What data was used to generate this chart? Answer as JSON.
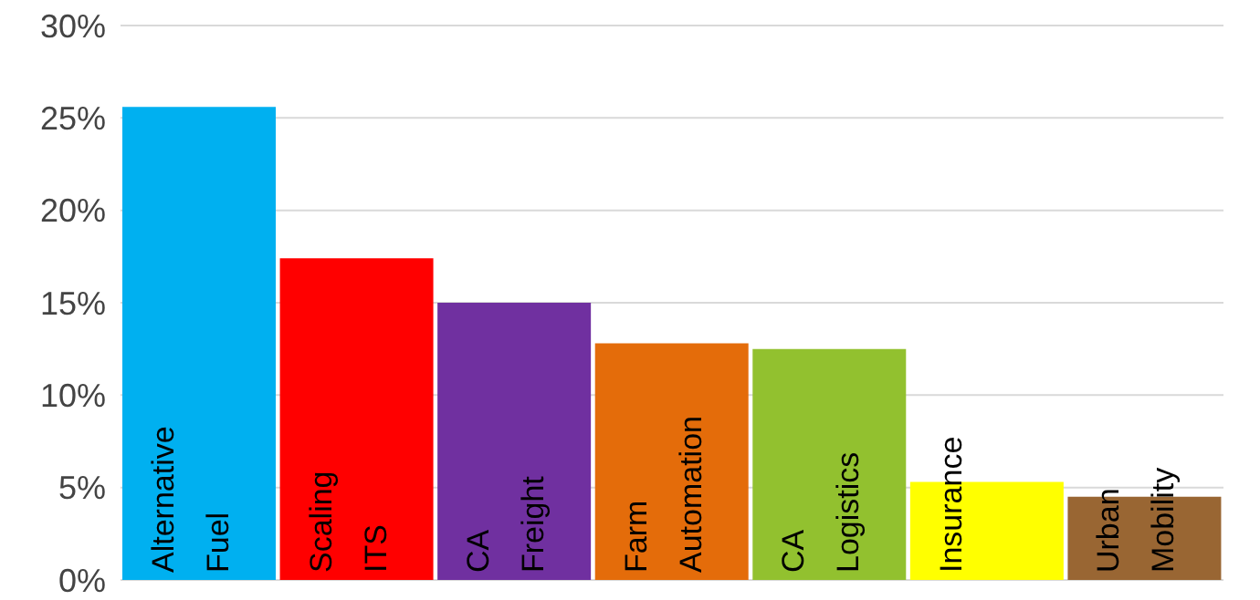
{
  "chart_data": {
    "type": "bar",
    "categories": [
      "Alternative Fuel",
      "Scaling ITS",
      "CA Freight",
      "Farm Automation",
      "CA Logistics",
      "Insurance",
      "Urban Mobility"
    ],
    "values": [
      25.6,
      17.4,
      15.0,
      12.8,
      12.5,
      5.3,
      4.5
    ],
    "colors": [
      "#00b0f0",
      "#ff0000",
      "#7030a0",
      "#e46c0a",
      "#92c12f",
      "#ffff00",
      "#996633"
    ],
    "ylim": [
      0,
      30
    ],
    "yticks": [
      {
        "value": 0,
        "label": "0%"
      },
      {
        "value": 5,
        "label": "5%"
      },
      {
        "value": 10,
        "label": "10%"
      },
      {
        "value": 15,
        "label": "15%"
      },
      {
        "value": 20,
        "label": "20%"
      },
      {
        "value": 25,
        "label": "25%"
      },
      {
        "value": 30,
        "label": "30%"
      }
    ],
    "grid": "y",
    "tick_labels": "y"
  }
}
